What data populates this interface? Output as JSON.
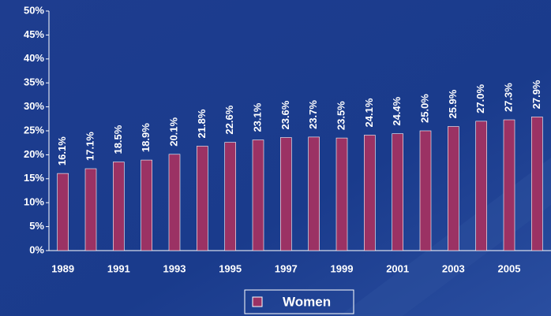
{
  "chart_data": {
    "type": "bar",
    "categories": [
      "1989",
      null,
      "1991",
      null,
      "1993",
      null,
      "1995",
      null,
      "1997",
      null,
      "1999",
      null,
      "2001",
      null,
      "2003",
      null,
      "2005",
      null
    ],
    "series": [
      {
        "name": "Women",
        "color": "#9b3264",
        "values": [
          16.1,
          17.1,
          18.5,
          18.9,
          20.1,
          21.8,
          22.6,
          23.1,
          23.6,
          23.7,
          23.5,
          24.1,
          24.4,
          25.0,
          25.9,
          27.0,
          27.3,
          27.9
        ],
        "value_labels": [
          "16.1%",
          "17.1%",
          "18.5%",
          "18.9%",
          "20.1%",
          "21.8%",
          "22.6%",
          "23.1%",
          "23.6%",
          "23.7%",
          "23.5%",
          "24.1%",
          "24.4%",
          "25.0%",
          "25.9%",
          "27.0%",
          "27.3%",
          "27.9%"
        ]
      }
    ],
    "ylim": [
      0,
      50
    ],
    "yticks": [
      {
        "value": 0,
        "label": "0%"
      },
      {
        "value": 5,
        "label": "5%"
      },
      {
        "value": 10,
        "label": "10%"
      },
      {
        "value": 15,
        "label": "15%"
      },
      {
        "value": 20,
        "label": "20%"
      },
      {
        "value": 25,
        "label": "25%"
      },
      {
        "value": 30,
        "label": "30%"
      },
      {
        "value": 35,
        "label": "35%"
      },
      {
        "value": 40,
        "label": "40%"
      },
      {
        "value": 45,
        "label": "45%"
      },
      {
        "value": 50,
        "label": "50%"
      }
    ],
    "grid": false,
    "legend": "bottom"
  }
}
